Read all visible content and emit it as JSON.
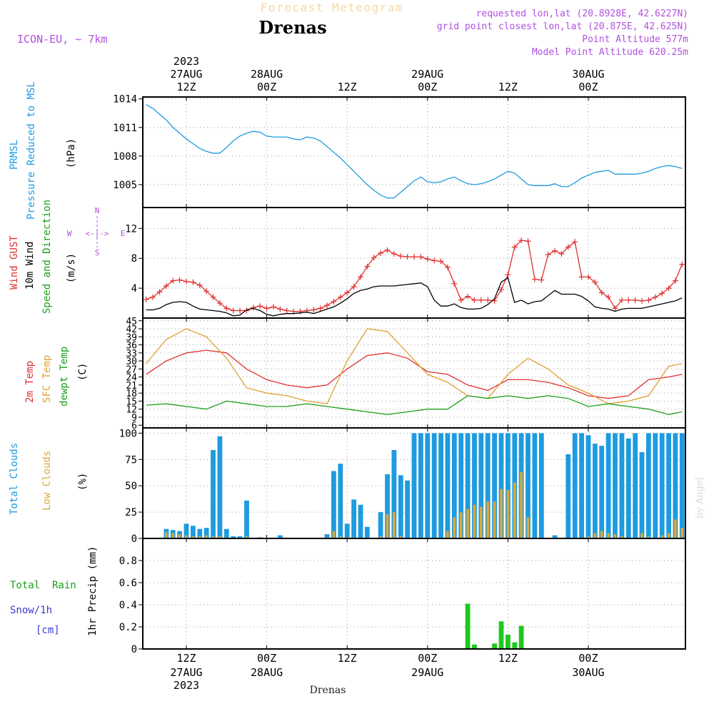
{
  "header": {
    "supertitle": "Forecast Meteogram",
    "place": "Drenas",
    "model": "ICON-EU, ~ 7km",
    "requested": "requested lon,lat (20.8928E, 42.6227N)",
    "gridpoint": "grid point closest lon,lat (20.875E, 42.625N)",
    "point_alt": "Point Altitude 577m",
    "model_alt": "Model Point Altitude 620.25m",
    "footer_place": "Drenas",
    "credit": "by Angel"
  },
  "time_axis": {
    "hours_total": 81,
    "ticks": [
      {
        "h": 6,
        "hour": "12Z",
        "date": "27AUG",
        "year": "2023"
      },
      {
        "h": 18,
        "hour": "00Z",
        "date": "28AUG",
        "year": ""
      },
      {
        "h": 30,
        "hour": "12Z",
        "date": "",
        "year": ""
      },
      {
        "h": 42,
        "hour": "00Z",
        "date": "29AUG",
        "year": ""
      },
      {
        "h": 54,
        "hour": "12Z",
        "date": "",
        "year": ""
      },
      {
        "h": 66,
        "hour": "00Z",
        "date": "30AUG",
        "year": ""
      }
    ]
  },
  "panels": {
    "pressure": {
      "labels": [
        "PRMSL",
        "Pressure Reduced to MSL",
        "(hPa)"
      ],
      "label_colors": [
        "#1e9be0",
        "#1e9be0",
        "#000000"
      ]
    },
    "wind": {
      "labels": [
        "Wind GUST",
        "10m Wind",
        "Speed and Direction",
        "(m/s)"
      ],
      "label_colors": [
        "#e03030",
        "#000000",
        "#1aa01a",
        "#000000"
      ],
      "compass": {
        "n": "N",
        "s": "S",
        "w": "W",
        "e": "E",
        "row": "<-|->"
      }
    },
    "temp": {
      "labels": [
        "2m Temp",
        "SFC Temp",
        "dewpt Temp",
        "(C)"
      ],
      "label_colors": [
        "#e03030",
        "#e0a030",
        "#1aa01a",
        "#000000"
      ]
    },
    "clouds": {
      "labels": [
        "Total Clouds",
        "Low Clouds",
        "(%)"
      ],
      "label_colors": [
        "#1e9be0",
        "#d9a93a",
        "#000000"
      ]
    },
    "precip": {
      "labels": [
        "Total  Rain",
        "Snow/1h",
        "[cm]",
        "1hr Precip (mm)"
      ],
      "label_colors": [
        "#1aa01a",
        "#3b3bd8",
        "#3b3bd8",
        "#000000"
      ]
    }
  },
  "chart_data": [
    {
      "type": "line",
      "title": "PRMSL Pressure Reduced to MSL",
      "ylabel": "(hPa)",
      "ylim": [
        1002.6,
        1014.2
      ],
      "yticks": [
        1005,
        1008,
        1011,
        1014
      ],
      "grid": true,
      "series": [
        {
          "name": "PRMSL",
          "color": "#1e9be0",
          "x": [
            0,
            1,
            2,
            3,
            4,
            5,
            6,
            7,
            8,
            9,
            10,
            11,
            12,
            13,
            14,
            15,
            16,
            17,
            18,
            19,
            20,
            21,
            22,
            23,
            24,
            25,
            26,
            27,
            28,
            29,
            30,
            31,
            32,
            33,
            34,
            35,
            36,
            37,
            38,
            39,
            40,
            41,
            42,
            43,
            44,
            45,
            46,
            47,
            48,
            49,
            50,
            51,
            52,
            53,
            54,
            55,
            56,
            57,
            58,
            59,
            60,
            61,
            62,
            63,
            64,
            65,
            66,
            67,
            68,
            69,
            70,
            71,
            72,
            73,
            74,
            75,
            76,
            77,
            78,
            79,
            80
          ],
          "values": [
            1013.4,
            1013.0,
            1012.4,
            1011.8,
            1011.0,
            1010.4,
            1009.8,
            1009.3,
            1008.8,
            1008.5,
            1008.3,
            1008.3,
            1008.9,
            1009.6,
            1010.1,
            1010.4,
            1010.6,
            1010.5,
            1010.1,
            1010.0,
            1010.0,
            1010.0,
            1009.8,
            1009.7,
            1010.0,
            1009.9,
            1009.6,
            1009.0,
            1008.4,
            1007.8,
            1007.1,
            1006.4,
            1005.7,
            1005.0,
            1004.4,
            1003.9,
            1003.6,
            1003.6,
            1004.2,
            1004.8,
            1005.4,
            1005.8,
            1005.3,
            1005.2,
            1005.3,
            1005.6,
            1005.8,
            1005.4,
            1005.1,
            1005.0,
            1005.1,
            1005.3,
            1005.6,
            1006.0,
            1006.4,
            1006.2,
            1005.6,
            1005.0,
            1004.9,
            1004.9,
            1004.9,
            1005.1,
            1004.8,
            1004.8,
            1005.2,
            1005.7,
            1006.0,
            1006.3,
            1006.4,
            1006.5,
            1006.1,
            1006.1,
            1006.1,
            1006.1,
            1006.2,
            1006.4,
            1006.7,
            1006.9,
            1007.0,
            1006.9,
            1006.7
          ]
        }
      ]
    },
    {
      "type": "line",
      "title": "Wind GUST / 10m Wind Speed and Direction",
      "ylabel": "(m/s)",
      "ylim": [
        0,
        14.8
      ],
      "yticks": [
        4,
        8,
        12
      ],
      "grid": true,
      "series": [
        {
          "name": "Wind GUST",
          "color": "#e03030",
          "marker": "+",
          "x": [
            0,
            1,
            2,
            3,
            4,
            5,
            6,
            7,
            8,
            9,
            10,
            11,
            12,
            13,
            14,
            15,
            16,
            17,
            18,
            19,
            20,
            21,
            22,
            23,
            24,
            25,
            26,
            27,
            28,
            29,
            30,
            31,
            32,
            33,
            34,
            35,
            36,
            37,
            38,
            39,
            40,
            41,
            42,
            43,
            44,
            45,
            46,
            47,
            48,
            49,
            50,
            51,
            52,
            53,
            54,
            55,
            56,
            57,
            58,
            59,
            60,
            61,
            62,
            63,
            64,
            65,
            66,
            67,
            68,
            69,
            70,
            71,
            72,
            73,
            74,
            75,
            76,
            77,
            78,
            79,
            80
          ],
          "values": [
            2.5,
            2.8,
            3.5,
            4.3,
            5.0,
            5.1,
            4.9,
            4.8,
            4.4,
            3.6,
            2.8,
            2.0,
            1.3,
            1.0,
            1.0,
            1.0,
            1.4,
            1.6,
            1.3,
            1.5,
            1.2,
            1.0,
            0.9,
            0.9,
            1.0,
            1.1,
            1.3,
            1.7,
            2.2,
            2.8,
            3.4,
            4.2,
            5.5,
            6.9,
            8.1,
            8.7,
            9.1,
            8.6,
            8.3,
            8.2,
            8.2,
            8.2,
            7.9,
            7.7,
            7.6,
            6.8,
            4.6,
            2.4,
            2.9,
            2.4,
            2.4,
            2.4,
            2.3,
            3.8,
            5.8,
            9.5,
            10.4,
            10.3,
            5.2,
            5.1,
            8.5,
            9.0,
            8.6,
            9.5,
            10.2,
            5.5,
            5.5,
            4.8,
            3.4,
            2.8,
            1.3,
            2.4,
            2.4,
            2.4,
            2.3,
            2.4,
            2.8,
            3.3,
            4.0,
            5.0,
            7.2
          ]
        },
        {
          "name": "10m Wind",
          "color": "#000000",
          "x": [
            0,
            1,
            2,
            3,
            4,
            5,
            6,
            7,
            8,
            9,
            10,
            11,
            12,
            13,
            14,
            15,
            16,
            17,
            18,
            19,
            20,
            21,
            22,
            23,
            24,
            25,
            26,
            27,
            28,
            29,
            30,
            31,
            32,
            33,
            34,
            35,
            36,
            37,
            38,
            39,
            40,
            41,
            42,
            43,
            44,
            45,
            46,
            47,
            48,
            49,
            50,
            51,
            52,
            53,
            54,
            55,
            56,
            57,
            58,
            59,
            60,
            61,
            62,
            63,
            64,
            65,
            66,
            67,
            68,
            69,
            70,
            71,
            72,
            73,
            74,
            75,
            76,
            77,
            78,
            79,
            80
          ],
          "values": [
            1.1,
            1.1,
            1.3,
            1.8,
            2.1,
            2.2,
            2.1,
            1.6,
            1.2,
            1.1,
            1.0,
            0.9,
            0.7,
            0.3,
            0.4,
            1.1,
            1.3,
            1.0,
            0.5,
            0.3,
            0.5,
            0.6,
            0.6,
            0.7,
            0.8,
            0.6,
            0.9,
            1.2,
            1.5,
            2.0,
            2.6,
            3.3,
            3.7,
            3.9,
            4.2,
            4.3,
            4.3,
            4.3,
            4.4,
            4.5,
            4.6,
            4.7,
            4.2,
            2.4,
            1.6,
            1.6,
            1.9,
            1.4,
            1.2,
            1.2,
            1.3,
            1.8,
            2.6,
            4.8,
            5.4,
            2.1,
            2.4,
            1.9,
            2.2,
            2.3,
            3.0,
            3.7,
            3.2,
            3.2,
            3.2,
            2.9,
            2.3,
            1.5,
            1.3,
            1.2,
            0.9,
            1.2,
            1.3,
            1.3,
            1.3,
            1.5,
            1.7,
            1.9,
            2.1,
            2.3,
            2.7
          ]
        }
      ]
    },
    {
      "type": "line",
      "title": "2m Temp / SFC Temp / dewpt Temp",
      "ylabel": "(C)",
      "ylim": [
        5,
        46
      ],
      "yticks": [
        6,
        9,
        12,
        15,
        18,
        21,
        24,
        27,
        30,
        33,
        36,
        39,
        42,
        45
      ],
      "grid": true,
      "series": [
        {
          "name": "2m Temp",
          "color": "#e03030",
          "x": [
            0,
            3,
            6,
            9,
            12,
            15,
            18,
            21,
            24,
            27,
            30,
            33,
            36,
            39,
            42,
            45,
            48,
            51,
            54,
            57,
            60,
            63,
            66,
            69,
            72,
            75,
            78,
            80
          ],
          "values": [
            25,
            30,
            33,
            34,
            33,
            27,
            23,
            21,
            20,
            21,
            27,
            32,
            33,
            31,
            26,
            25,
            21,
            19,
            23,
            23,
            22,
            20,
            17,
            16,
            17,
            23,
            24,
            25
          ]
        },
        {
          "name": "SFC Temp",
          "color": "#e0a030",
          "x": [
            0,
            3,
            6,
            9,
            12,
            15,
            18,
            21,
            24,
            27,
            30,
            33,
            36,
            39,
            42,
            45,
            48,
            51,
            54,
            57,
            60,
            63,
            66,
            69,
            72,
            75,
            78,
            80
          ],
          "values": [
            29,
            38,
            42,
            39,
            31,
            20,
            18,
            17,
            15,
            14,
            30,
            42,
            41,
            33,
            25,
            22,
            17,
            16,
            25,
            31,
            27,
            21,
            18,
            14,
            15,
            17,
            28,
            29
          ]
        },
        {
          "name": "dewpt Temp",
          "color": "#1aa01a",
          "x": [
            0,
            3,
            6,
            9,
            12,
            15,
            18,
            21,
            24,
            27,
            30,
            33,
            36,
            39,
            42,
            45,
            48,
            51,
            54,
            57,
            60,
            63,
            66,
            69,
            72,
            75,
            78,
            80
          ],
          "values": [
            13.5,
            14,
            13,
            12,
            15,
            14,
            13,
            13,
            14,
            13,
            12,
            11,
            10,
            11,
            12,
            12,
            17,
            16,
            17,
            16,
            17,
            16,
            13,
            14,
            13,
            12,
            10,
            11
          ]
        }
      ]
    },
    {
      "type": "bar",
      "title": "Total Clouds / Low Clouds",
      "ylabel": "(%)",
      "ylim": [
        0,
        105
      ],
      "yticks": [
        0,
        25,
        50,
        75,
        100
      ],
      "grid": true,
      "categories": [
        0,
        1,
        2,
        3,
        4,
        5,
        6,
        7,
        8,
        9,
        10,
        11,
        12,
        13,
        14,
        15,
        16,
        17,
        18,
        19,
        20,
        21,
        22,
        23,
        24,
        25,
        26,
        27,
        28,
        29,
        30,
        31,
        32,
        33,
        34,
        35,
        36,
        37,
        38,
        39,
        40,
        41,
        42,
        43,
        44,
        45,
        46,
        47,
        48,
        49,
        50,
        51,
        52,
        53,
        54,
        55,
        56,
        57,
        58,
        59,
        60,
        61,
        62,
        63,
        64,
        65,
        66,
        67,
        68,
        69,
        70,
        71,
        72,
        73,
        74,
        75,
        76,
        77,
        78,
        79,
        80
      ],
      "series": [
        {
          "name": "Total Clouds",
          "color": "#1e9be0",
          "values": [
            0,
            0,
            0,
            9,
            8,
            7,
            14,
            12,
            9,
            10,
            84,
            97,
            9,
            2,
            2,
            36,
            0,
            1,
            0,
            0,
            3,
            0,
            0,
            0,
            0,
            0,
            0,
            4,
            64,
            71,
            14,
            37,
            32,
            11,
            0,
            25,
            61,
            84,
            60,
            55,
            100,
            100,
            100,
            100,
            100,
            100,
            100,
            100,
            100,
            100,
            100,
            100,
            100,
            100,
            100,
            100,
            100,
            100,
            100,
            100,
            0,
            3,
            0,
            80,
            100,
            100,
            98,
            90,
            88,
            100,
            100,
            100,
            95,
            100,
            82,
            100,
            100,
            100,
            100,
            100,
            100
          ]
        },
        {
          "name": "Low Clouds",
          "color": "#d9a93a",
          "values": [
            0,
            0,
            0,
            6,
            5,
            4,
            3,
            2,
            2,
            3,
            2,
            2,
            1,
            0,
            0,
            2,
            0,
            0,
            0,
            0,
            0,
            0,
            0,
            0,
            0,
            0,
            0,
            1,
            7,
            2,
            1,
            1,
            0,
            0,
            0,
            2,
            23,
            25,
            2,
            0,
            0,
            0,
            0,
            0,
            0,
            7,
            20,
            25,
            28,
            32,
            30,
            35,
            35,
            47,
            46,
            53,
            63,
            20,
            0,
            0,
            0,
            0,
            0,
            0,
            0,
            0,
            2,
            5,
            7,
            5,
            4,
            2,
            0,
            0,
            5,
            2,
            0,
            3,
            5,
            18,
            10
          ]
        }
      ]
    },
    {
      "type": "bar",
      "title": "1hr Precip",
      "ylabel": "1hr Precip (mm)",
      "ylim": [
        0,
        1.0
      ],
      "yticks": [
        0,
        0.2,
        0.4,
        0.6,
        0.8
      ],
      "grid": true,
      "categories": [
        48,
        49,
        50,
        51,
        52,
        53,
        54,
        55,
        56,
        57
      ],
      "series": [
        {
          "name": "Total Rain",
          "color": "#1ec81e",
          "values": [
            0.41,
            0.04,
            0,
            0,
            0.05,
            0.25,
            0.13,
            0.06,
            0.21,
            0
          ]
        }
      ]
    }
  ]
}
